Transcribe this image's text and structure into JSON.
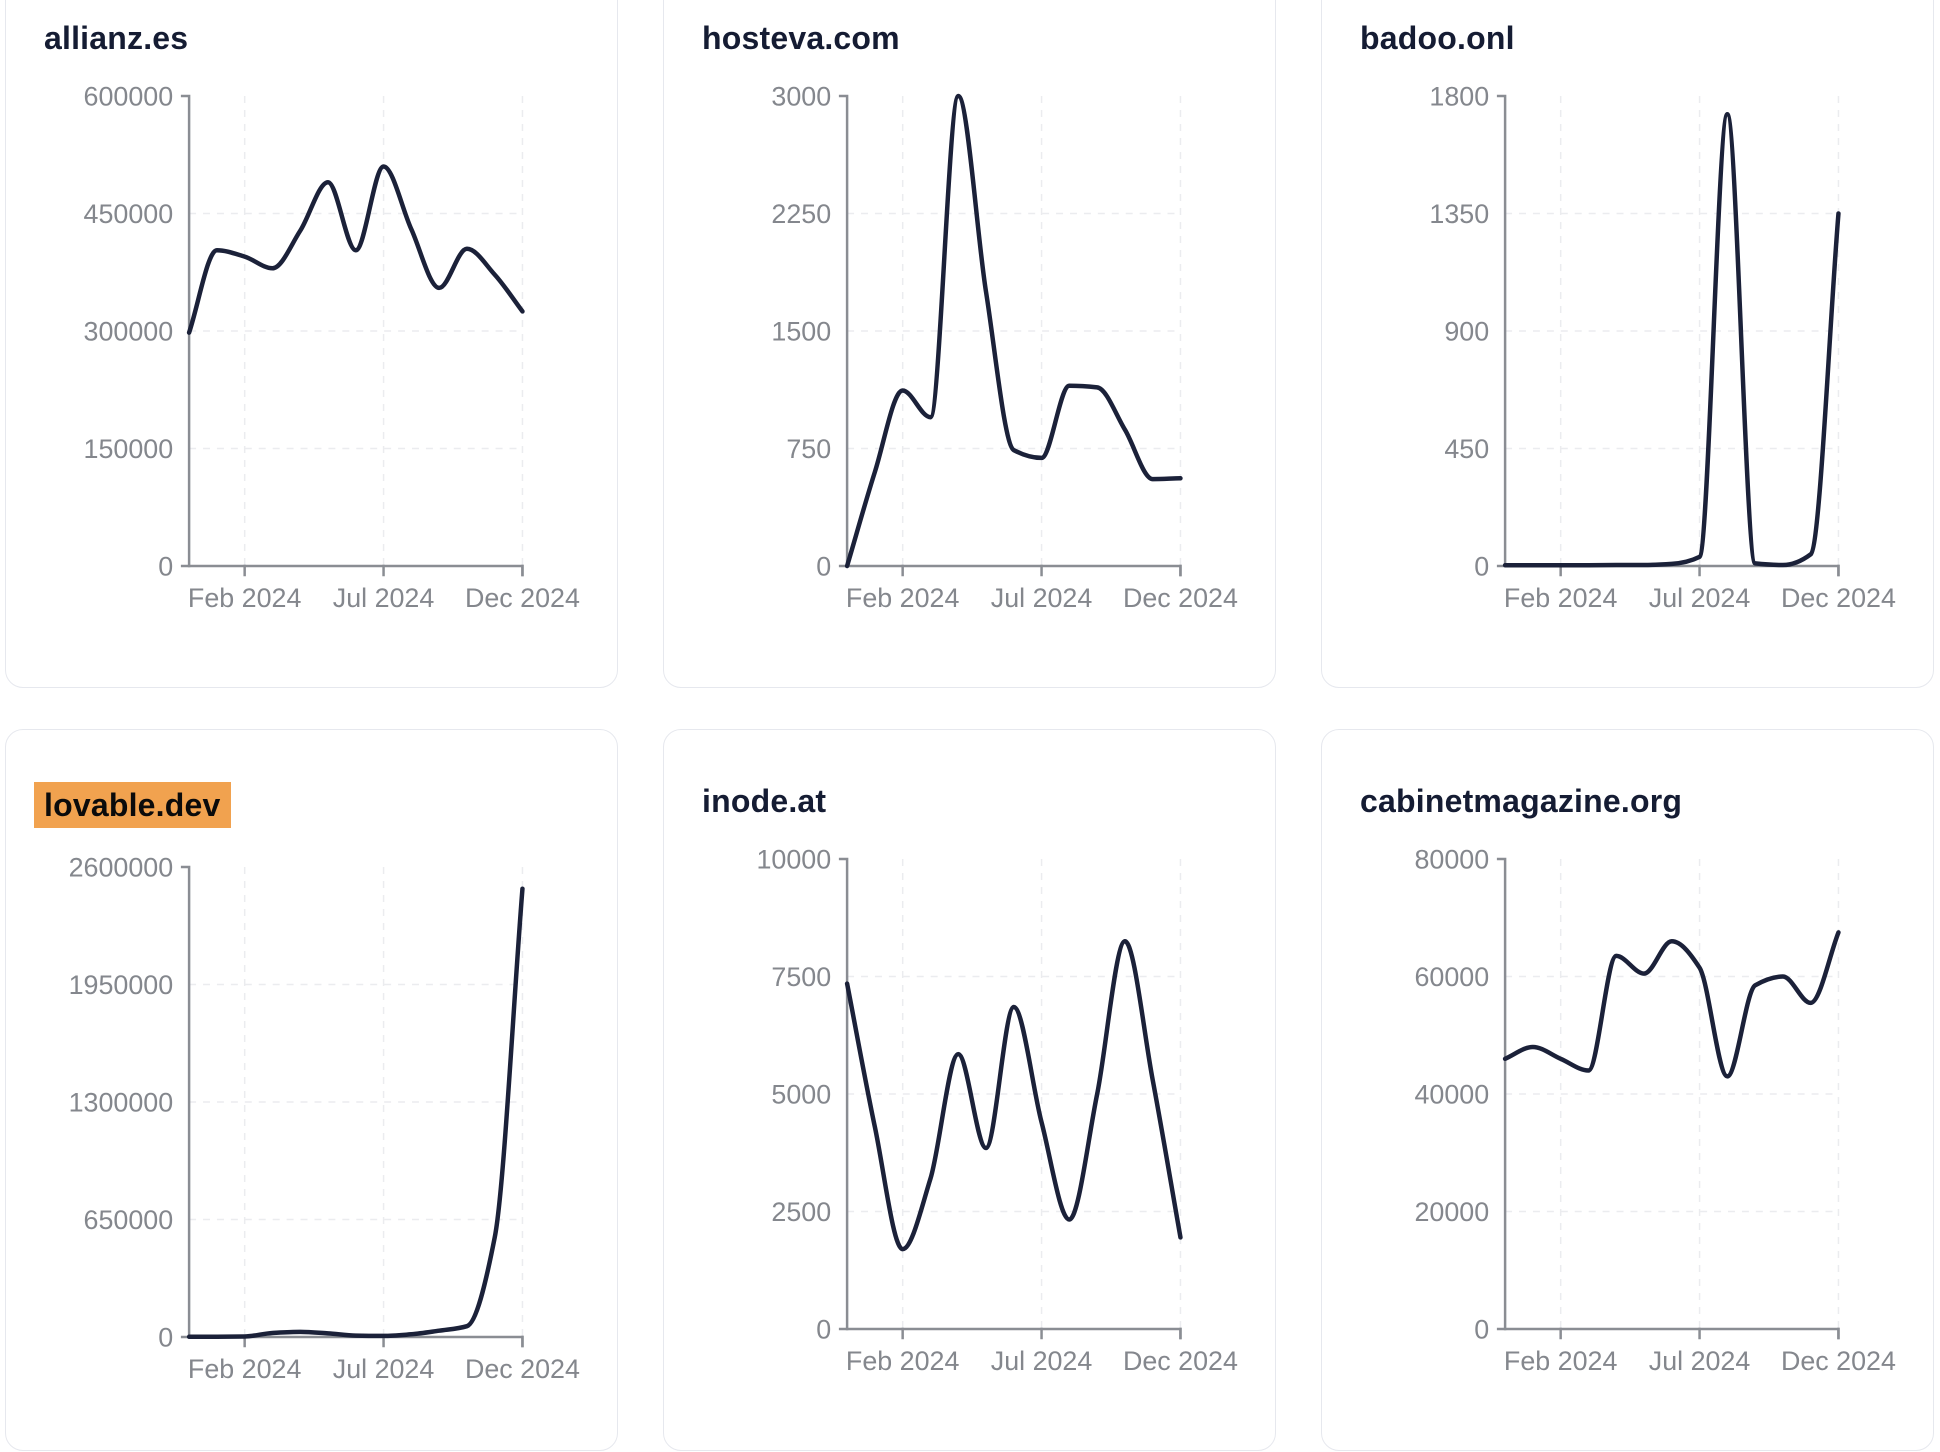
{
  "styles": {
    "page_bg": "#ffffff",
    "card_bg": "#ffffff",
    "card_border": "#e6e8ee",
    "title_color": "#151c33",
    "line_color": "#1b2139",
    "axis_color": "#8a8d93",
    "tick_label_color": "#84878d",
    "grid_color": "#ebecef",
    "highlight_bg": "#f1a24f",
    "highlight_text": "#0b0b0b"
  },
  "x_axis": {
    "tick_labels": [
      "Feb 2024",
      "Jul 2024",
      "Dec 2024"
    ]
  },
  "chart_data": [
    {
      "type": "line",
      "title": "allianz.es",
      "title_highlighted": false,
      "x": [
        "Dec 2023",
        "Jan 2024",
        "Feb 2024",
        "Mar 2024",
        "Apr 2024",
        "May 2024",
        "Jun 2024",
        "Jul 2024",
        "Aug 2024",
        "Sep 2024",
        "Oct 2024",
        "Nov 2024",
        "Dec 2024"
      ],
      "values": [
        298000,
        403000,
        395000,
        380000,
        428000,
        490000,
        403000,
        510000,
        430000,
        355000,
        405000,
        372000,
        325000
      ],
      "ylim": [
        0,
        600000
      ],
      "y_ticks": [
        0,
        150000,
        300000,
        450000,
        600000
      ],
      "x_tick_labels": [
        "Feb 2024",
        "Jul 2024",
        "Dec 2024"
      ],
      "x_tick_indices": [
        2,
        7,
        12
      ],
      "grid": "dashed"
    },
    {
      "type": "line",
      "title": "hosteva.com",
      "title_highlighted": false,
      "x": [
        "Dec 2023",
        "Jan 2024",
        "Feb 2024",
        "Mar 2024",
        "Apr 2024",
        "May 2024",
        "Jun 2024",
        "Jul 2024",
        "Aug 2024",
        "Sep 2024",
        "Oct 2024",
        "Nov 2024",
        "Dec 2024"
      ],
      "values": [
        0,
        600,
        1120,
        950,
        3000,
        1750,
        740,
        690,
        1150,
        1140,
        870,
        555,
        560
      ],
      "ylim": [
        0,
        3000
      ],
      "y_ticks": [
        0,
        750,
        1500,
        2250,
        3000
      ],
      "x_tick_labels": [
        "Feb 2024",
        "Jul 2024",
        "Dec 2024"
      ],
      "x_tick_indices": [
        2,
        7,
        12
      ],
      "grid": "dashed"
    },
    {
      "type": "line",
      "title": "badoo.onl",
      "title_highlighted": false,
      "x": [
        "Dec 2023",
        "Jan 2024",
        "Feb 2024",
        "Mar 2024",
        "Apr 2024",
        "May 2024",
        "Jun 2024",
        "Jul 2024",
        "Aug 2024",
        "Sep 2024",
        "Oct 2024",
        "Nov 2024",
        "Dec 2024"
      ],
      "values": [
        3,
        3,
        3,
        3,
        4,
        4,
        8,
        35,
        1730,
        10,
        4,
        45,
        1350
      ],
      "ylim": [
        0,
        1800
      ],
      "y_ticks": [
        0,
        450,
        900,
        1350,
        1800
      ],
      "x_tick_labels": [
        "Feb 2024",
        "Jul 2024",
        "Dec 2024"
      ],
      "x_tick_indices": [
        2,
        7,
        12
      ],
      "grid": "dashed"
    },
    {
      "type": "line",
      "title": "lovable.dev",
      "title_highlighted": true,
      "x": [
        "Dec 2023",
        "Jan 2024",
        "Feb 2024",
        "Mar 2024",
        "Apr 2024",
        "May 2024",
        "Jun 2024",
        "Jul 2024",
        "Aug 2024",
        "Sep 2024",
        "Oct 2024",
        "Nov 2024",
        "Dec 2024"
      ],
      "values": [
        1000,
        1500,
        3000,
        22000,
        28000,
        20000,
        8000,
        6000,
        15000,
        35000,
        60000,
        550000,
        2480000
      ],
      "ylim": [
        0,
        2600000
      ],
      "y_ticks": [
        0,
        650000,
        1300000,
        1950000,
        2600000
      ],
      "x_tick_labels": [
        "Feb 2024",
        "Jul 2024",
        "Dec 2024"
      ],
      "x_tick_indices": [
        2,
        7,
        12
      ],
      "grid": "dashed"
    },
    {
      "type": "line",
      "title": "inode.at",
      "title_highlighted": false,
      "x": [
        "Dec 2023",
        "Jan 2024",
        "Feb 2024",
        "Mar 2024",
        "Apr 2024",
        "May 2024",
        "Jun 2024",
        "Jul 2024",
        "Aug 2024",
        "Sep 2024",
        "Oct 2024",
        "Nov 2024",
        "Dec 2024"
      ],
      "values": [
        7350,
        4300,
        1700,
        3200,
        5850,
        3850,
        6850,
        4400,
        2330,
        5000,
        8250,
        5300,
        1950
      ],
      "ylim": [
        0,
        10000
      ],
      "y_ticks": [
        0,
        2500,
        5000,
        7500,
        10000
      ],
      "x_tick_labels": [
        "Feb 2024",
        "Jul 2024",
        "Dec 2024"
      ],
      "x_tick_indices": [
        2,
        7,
        12
      ],
      "grid": "dashed"
    },
    {
      "type": "line",
      "title": "cabinetmagazine.org",
      "title_highlighted": false,
      "x": [
        "Dec 2023",
        "Jan 2024",
        "Feb 2024",
        "Mar 2024",
        "Apr 2024",
        "May 2024",
        "Jun 2024",
        "Jul 2024",
        "Aug 2024",
        "Sep 2024",
        "Oct 2024",
        "Nov 2024",
        "Dec 2024"
      ],
      "values": [
        46000,
        48000,
        46000,
        44000,
        63500,
        60500,
        66000,
        61500,
        43000,
        58500,
        60000,
        55500,
        67500
      ],
      "ylim": [
        0,
        80000
      ],
      "y_ticks": [
        0,
        20000,
        40000,
        60000,
        80000
      ],
      "x_tick_labels": [
        "Feb 2024",
        "Jul 2024",
        "Dec 2024"
      ],
      "x_tick_indices": [
        2,
        7,
        12
      ],
      "grid": "dashed"
    }
  ]
}
